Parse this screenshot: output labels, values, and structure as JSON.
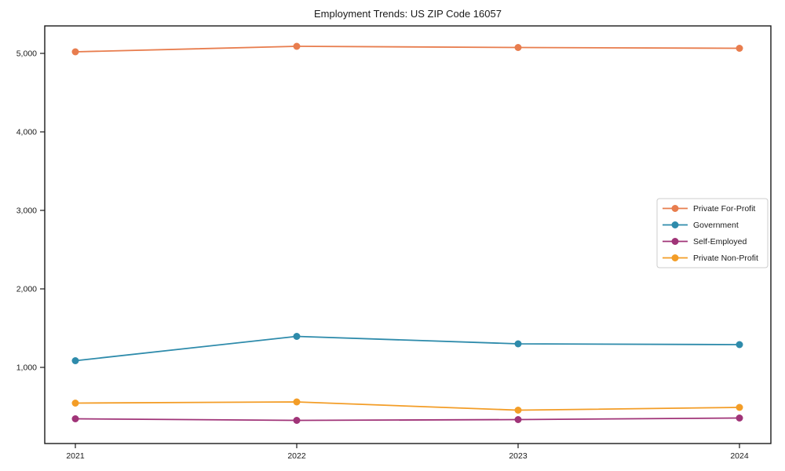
{
  "figure": {
    "title": "Employment Trends: US ZIP Code 16057"
  },
  "chart_data": {
    "type": "line",
    "title": "Employment Trends: US ZIP Code 16057",
    "categories": [
      "2021",
      "2022",
      "2023",
      "2024"
    ],
    "series": [
      {
        "name": "Private For-Profit",
        "color": "#e87d4e",
        "values": [
          5020,
          5090,
          5075,
          5065
        ]
      },
      {
        "name": "Government",
        "color": "#2e8bab",
        "values": [
          1085,
          1395,
          1300,
          1290
        ]
      },
      {
        "name": "Self-Employed",
        "color": "#a03478",
        "values": [
          345,
          325,
          335,
          355
        ]
      },
      {
        "name": "Private Non-Profit",
        "color": "#f39d27",
        "values": [
          545,
          560,
          455,
          490
        ]
      }
    ],
    "xlabel": "",
    "ylabel": "",
    "ylim": [
      30,
      5350
    ],
    "yticks": [
      1000,
      2000,
      3000,
      4000,
      5000
    ],
    "ytick_labels": [
      "1,000",
      "2,000",
      "3,000",
      "4,000",
      "5,000"
    ],
    "grid": false,
    "legend_position": "center-right",
    "marker": "circle",
    "axis_color": "#1a1a1a",
    "legend_border_color": "#cccccc"
  }
}
